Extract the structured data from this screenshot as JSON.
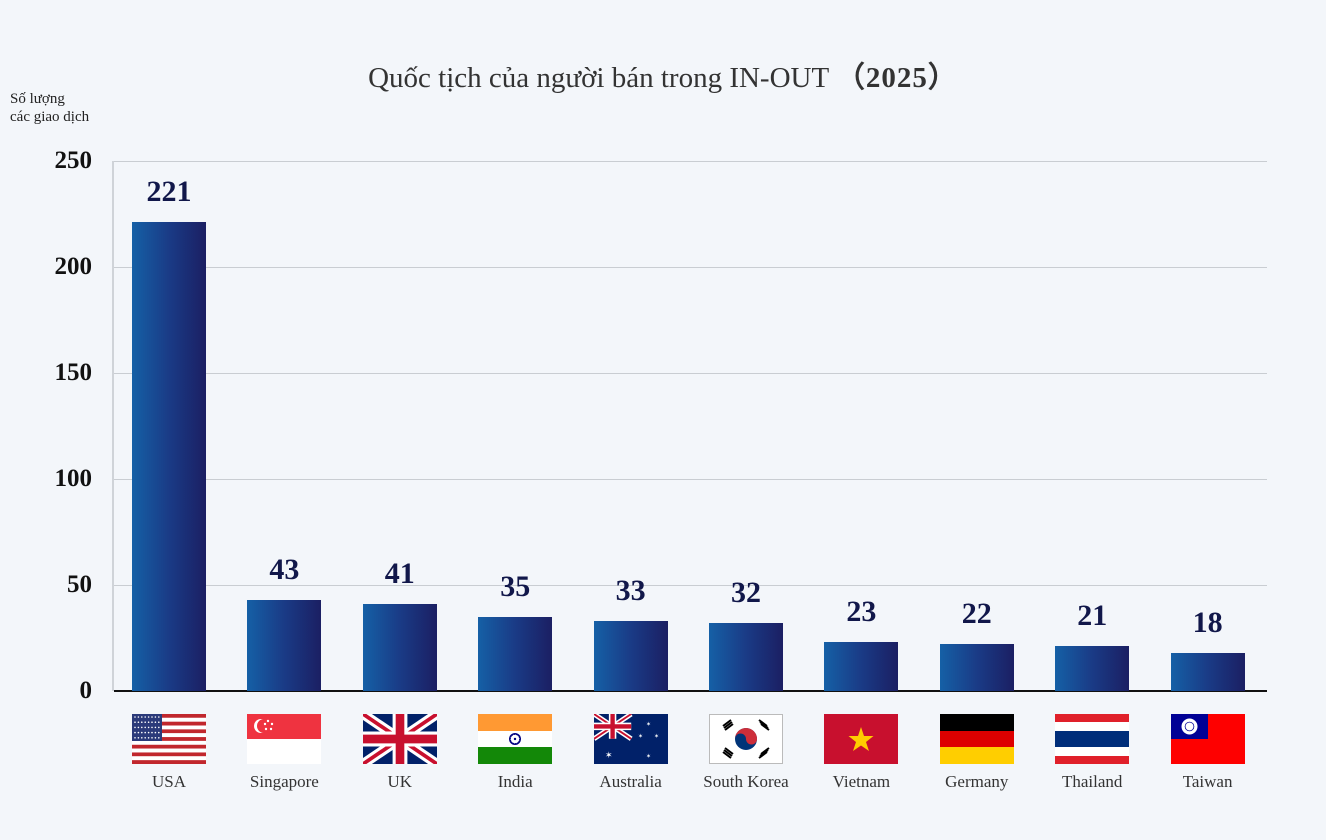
{
  "chart_data": {
    "type": "bar",
    "title": "Quốc tịch của người bán trong IN-OUT（2025）",
    "title_main": "Quốc tịch của người bán trong IN-OUT",
    "title_year": "（2025）",
    "xlabel": "",
    "ylabel": "Số lượng các giao dịch",
    "ylabel_lines": [
      "Số lượng",
      "các giao dịch"
    ],
    "ylim": [
      0,
      250
    ],
    "yticks": [
      0,
      50,
      100,
      150,
      200,
      250
    ],
    "grid": true,
    "legend": "none",
    "categories": [
      "USA",
      "Singapore",
      "UK",
      "India",
      "Australia",
      "South Korea",
      "Vietnam",
      "Germany",
      "Thailand",
      "Taiwan"
    ],
    "values": [
      221,
      43,
      41,
      35,
      33,
      32,
      23,
      22,
      21,
      18
    ],
    "bar_gradient": [
      "#1560a6",
      "#1b1f63"
    ],
    "label_color": "#11174a"
  },
  "flags": [
    "usa-flag",
    "singapore-flag",
    "uk-flag",
    "india-flag",
    "australia-flag",
    "south-korea-flag",
    "vietnam-flag",
    "germany-flag",
    "thailand-flag",
    "taiwan-flag"
  ]
}
